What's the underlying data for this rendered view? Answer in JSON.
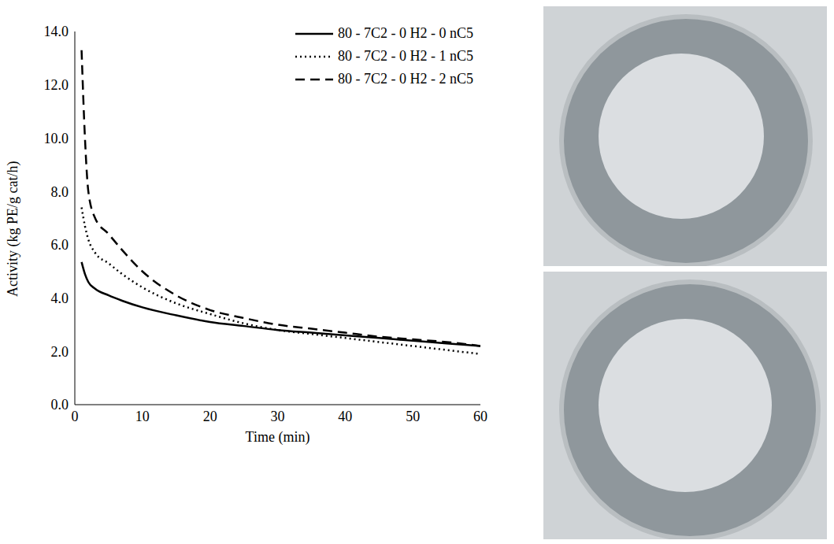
{
  "chart_data": {
    "type": "line",
    "x_label": "Time (min)",
    "y_label": "Activity (kg PE/g cat/h)",
    "x": [
      1,
      1.5,
      2,
      3,
      5,
      7,
      10,
      15,
      20,
      25,
      30,
      35,
      40,
      45,
      50,
      55,
      60
    ],
    "series": [
      {
        "name": "80 - 7C2 - 0 H2 - 0 nC5",
        "color": "#000000",
        "line_style": "solid",
        "values": [
          5.35,
          4.9,
          4.6,
          4.35,
          4.1,
          3.9,
          3.65,
          3.35,
          3.1,
          2.95,
          2.8,
          2.7,
          2.6,
          2.5,
          2.4,
          2.3,
          2.2
        ]
      },
      {
        "name": "80 - 7C2 - 0 H2 - 1 nC5",
        "color": "#000000",
        "line_style": "dotted",
        "values": [
          7.4,
          6.7,
          6.2,
          5.7,
          5.3,
          4.9,
          4.4,
          3.8,
          3.4,
          3.05,
          2.8,
          2.65,
          2.5,
          2.35,
          2.2,
          2.05,
          1.9
        ]
      },
      {
        "name": "80 - 7C2 - 0 H2 - 2 nC5",
        "color": "#000000",
        "line_style": "dashed",
        "values": [
          13.3,
          10.0,
          8.0,
          7.0,
          6.4,
          5.8,
          5.0,
          4.1,
          3.55,
          3.25,
          3.0,
          2.85,
          2.7,
          2.55,
          2.45,
          2.35,
          2.2
        ]
      }
    ],
    "xlim": [
      0,
      60
    ],
    "xticks": [
      0,
      10,
      20,
      30,
      40,
      50,
      60
    ],
    "ylim": [
      0,
      14
    ],
    "yticks": [
      {
        "value": 0,
        "label": "0.0"
      },
      {
        "value": 2,
        "label": "2.0"
      },
      {
        "value": 4,
        "label": "4.0"
      },
      {
        "value": 6,
        "label": "6.0"
      },
      {
        "value": 8,
        "label": "8.0"
      },
      {
        "value": 10,
        "label": "10.0"
      },
      {
        "value": 12,
        "label": "12.0"
      },
      {
        "value": 14,
        "label": "14.0"
      }
    ],
    "grid": false,
    "legend": "upper right"
  }
}
